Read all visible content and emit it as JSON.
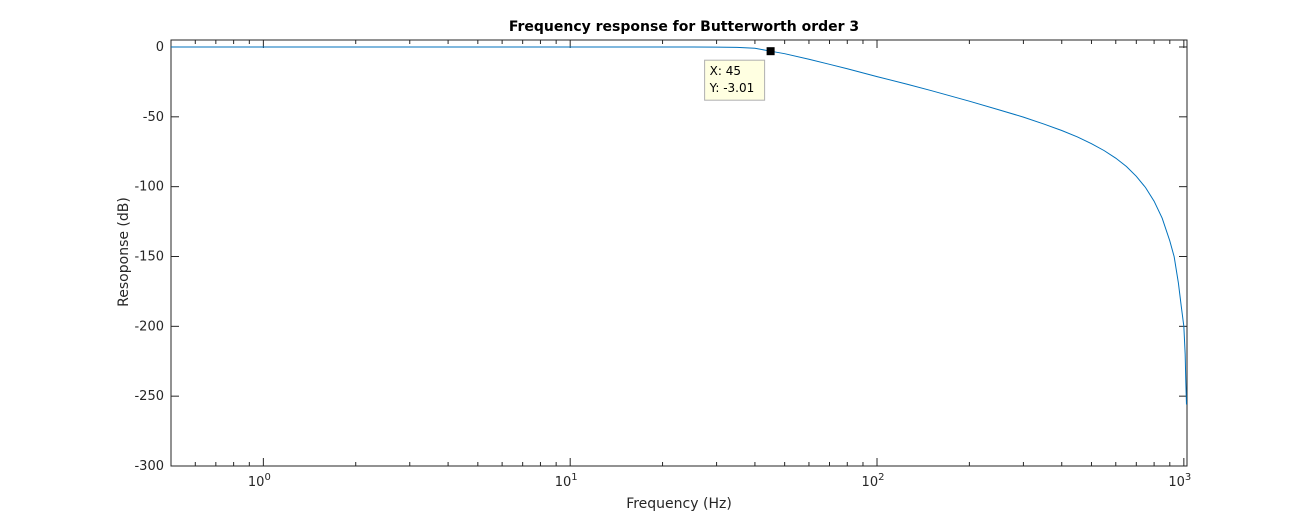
{
  "chart_data": {
    "type": "line",
    "title": "Frequency response for Butterworth order 3",
    "xlabel": "Frequency (Hz)",
    "ylabel": "Resoponse (dB)",
    "xscale": "log",
    "xlim": [
      0.5,
      1024
    ],
    "ylim": [
      -300,
      5
    ],
    "yticks": [
      0,
      -50,
      -100,
      -150,
      -200,
      -250,
      -300
    ],
    "xticks": [
      {
        "value": 1,
        "base": "10",
        "exp": "0"
      },
      {
        "value": 10,
        "base": "10",
        "exp": "1"
      },
      {
        "value": 100,
        "base": "10",
        "exp": "2"
      },
      {
        "value": 1000,
        "base": "10",
        "exp": "3"
      }
    ],
    "grid": false,
    "box": true,
    "series": [
      {
        "color": "#0072bd",
        "x": [
          0.5,
          1,
          2,
          5,
          10,
          15,
          20,
          25,
          30,
          35,
          40,
          45,
          50,
          60,
          70,
          80,
          100,
          125,
          150,
          200,
          250,
          300,
          350,
          400,
          450,
          500,
          550,
          600,
          650,
          700,
          750,
          800,
          850,
          900,
          930,
          960,
          980,
          1000,
          1010,
          1015,
          1020
        ],
        "y": [
          0,
          0,
          0,
          0,
          0,
          0,
          -0.01,
          -0.04,
          -0.12,
          -0.3,
          -0.9,
          -3.01,
          -4.8,
          -8.8,
          -12.4,
          -15.6,
          -21.2,
          -26.6,
          -31.2,
          -38.8,
          -45.0,
          -50.2,
          -55.2,
          -59.8,
          -64.4,
          -69.2,
          -74.2,
          -79.6,
          -85.6,
          -92.6,
          -100.6,
          -110.4,
          -122.6,
          -138.8,
          -150.2,
          -169.0,
          -185.0,
          -200.0,
          -220.0,
          -240.0,
          -256.0
        ]
      }
    ],
    "datatip": {
      "x": 45,
      "y": -3.01,
      "x_label": "X: 45",
      "y_label": "Y: -3.01"
    }
  }
}
